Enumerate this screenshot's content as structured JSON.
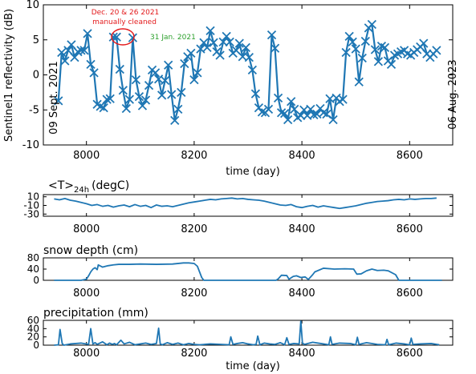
{
  "figure": {
    "line_color": "#1f77b4",
    "annotation_red": "#e31a1c",
    "annotation_green": "#2ca02c"
  },
  "chart_data": [
    {
      "type": "line",
      "marker": "x",
      "title": "",
      "xlabel": "time (day)",
      "ylabel": "Sentinel1 reflectivity (dB)",
      "xlim": [
        7920,
        8680
      ],
      "ylim": [
        -10,
        10
      ],
      "x_ticks": [
        8000,
        8200,
        8400,
        8600
      ],
      "y_ticks": [
        -10,
        -5,
        0,
        5,
        10
      ],
      "grid": false,
      "series": [
        {
          "x": [
            7948,
            7954,
            7960,
            7966,
            7972,
            7978,
            7984,
            7990,
            7996,
            8002,
            8008,
            8014,
            8020,
            8026,
            8032,
            8038,
            8044,
            8050,
            8056,
            8062,
            8068,
            8074,
            8080,
            8086,
            8092,
            8098,
            8104,
            8110,
            8116,
            8122,
            8128,
            8134,
            8140,
            8146,
            8152,
            8158,
            8164,
            8170,
            8176,
            8182,
            8188,
            8194,
            8200,
            8206,
            8212,
            8218,
            8224,
            8230,
            8236,
            8242,
            8248,
            8254,
            8260,
            8266,
            8272,
            8278,
            8284,
            8290,
            8296,
            8302,
            8308,
            8314,
            8320,
            8326,
            8332,
            8338,
            8344,
            8350,
            8356,
            8362,
            8368,
            8374,
            8380,
            8386,
            8392,
            8398,
            8404,
            8410,
            8416,
            8422,
            8428,
            8434,
            8440,
            8446,
            8452,
            8458,
            8464,
            8470,
            8476,
            8482,
            8488,
            8494,
            8500,
            8506,
            8512,
            8518,
            8524,
            8530,
            8536,
            8542,
            8548,
            8554,
            8560,
            8566,
            8572,
            8578,
            8584,
            8590,
            8596,
            8602,
            8608,
            8614,
            8620,
            8626,
            8632,
            8638,
            8644,
            8650
          ],
          "y": [
            -3.7,
            3.2,
            2.0,
            3.5,
            4.3,
            2.5,
            3.3,
            3.5,
            3.5,
            5.9,
            1.5,
            0.3,
            -4.2,
            -4.5,
            -4.7,
            -3.5,
            -3.4,
            5.4,
            5.4,
            0.8,
            -2.2,
            -4.8,
            -3.5,
            5.3,
            -0.7,
            -3.1,
            -4.4,
            -3.6,
            -1.5,
            0.7,
            0.3,
            -0.6,
            -2.9,
            -0.8,
            1.4,
            -2.8,
            -6.5,
            -4.9,
            -2.5,
            1.6,
            2.6,
            3.1,
            -0.7,
            0.3,
            3.7,
            4.6,
            3.9,
            6.3,
            4.6,
            3.3,
            2.8,
            4.7,
            5.5,
            4.7,
            3.1,
            3.5,
            4.5,
            2.6,
            3.9,
            2.5,
            0.7,
            -2.7,
            -4.7,
            -5.3,
            -5.4,
            -4.9,
            5.7,
            3.8,
            -3.3,
            -5.4,
            -5.5,
            -6.4,
            -3.8,
            -4.9,
            -6.1,
            -5.8,
            -5.0,
            -5.8,
            -4.9,
            -5.7,
            -5.6,
            -4.8,
            -5.4,
            -5.6,
            -3.4,
            -6.4,
            -3.3,
            -3.8,
            -3.5,
            3.2,
            5.5,
            4.7,
            3.7,
            -1.0,
            2.4,
            4.8,
            6.7,
            7.2,
            3.6,
            1.9,
            4.1,
            3.9,
            2.0,
            1.5,
            2.8,
            3.0,
            3.3,
            3.5,
            3.0,
            2.8,
            3.2,
            3.6,
            4.0,
            4.5,
            3.0,
            2.5,
            3.0,
            3.5
          ]
        }
      ],
      "annotations": [
        {
          "text": "Dec. 20 & 26 2021",
          "color": "red"
        },
        {
          "text": "manually cleaned",
          "color": "red"
        },
        {
          "text": "31 Jan. 2021",
          "color": "green"
        }
      ],
      "side_labels": {
        "left": "09 Sept. 2021",
        "right": "06 Aug. 2023"
      }
    },
    {
      "type": "line",
      "title": "<T>24h (degC)",
      "title_main": "<T>",
      "title_sub": "24h",
      "title_unit": "(degC)",
      "xlabel": "",
      "ylabel": "",
      "xlim": [
        7920,
        8680
      ],
      "ylim": [
        -35,
        15
      ],
      "x_ticks": [
        8000,
        8200,
        8400,
        8600
      ],
      "y_ticks": [
        10,
        -10,
        -30
      ],
      "y_tick_labels": [
        "10",
        "-10",
        "-30"
      ],
      "grid": false,
      "series": [
        {
          "x": [
            7940,
            7950,
            7960,
            7970,
            7980,
            7990,
            8000,
            8010,
            8020,
            8030,
            8040,
            8050,
            8060,
            8070,
            8080,
            8090,
            8100,
            8110,
            8120,
            8130,
            8140,
            8150,
            8160,
            8170,
            8180,
            8190,
            8200,
            8210,
            8220,
            8230,
            8240,
            8250,
            8260,
            8270,
            8280,
            8290,
            8300,
            8310,
            8320,
            8330,
            8340,
            8350,
            8360,
            8370,
            8380,
            8390,
            8400,
            8410,
            8420,
            8430,
            8440,
            8450,
            8460,
            8470,
            8480,
            8490,
            8500,
            8510,
            8520,
            8530,
            8540,
            8550,
            8560,
            8570,
            8580,
            8590,
            8600,
            8610,
            8620,
            8630,
            8640,
            8650
          ],
          "y": [
            5,
            3,
            6,
            2,
            0,
            -3,
            -6,
            -10,
            -8,
            -12,
            -10,
            -14,
            -11,
            -9,
            -13,
            -8,
            -12,
            -10,
            -15,
            -9,
            -12,
            -11,
            -13,
            -10,
            -7,
            -4,
            -2,
            0,
            2,
            4,
            3,
            5,
            6,
            7,
            5,
            6,
            4,
            3,
            2,
            0,
            -3,
            -6,
            -9,
            -10,
            -8,
            -13,
            -15,
            -12,
            -10,
            -14,
            -11,
            -13,
            -15,
            -17,
            -15,
            -13,
            -11,
            -8,
            -5,
            -3,
            -1,
            0,
            1,
            3,
            4,
            3,
            5,
            4,
            5,
            6,
            6,
            7
          ]
        }
      ]
    },
    {
      "type": "line",
      "title": "snow depth (cm)",
      "xlabel": "",
      "ylabel": "",
      "xlim": [
        7920,
        8680
      ],
      "ylim": [
        0,
        80
      ],
      "x_ticks": [
        8000,
        8200,
        8400,
        8600
      ],
      "y_ticks": [
        0,
        40,
        80
      ],
      "grid": false,
      "series": [
        {
          "x": [
            7940,
            7990,
            8000,
            8004,
            8008,
            8012,
            8016,
            8020,
            8022,
            8030,
            8040,
            8050,
            8060,
            8080,
            8100,
            8130,
            8160,
            8180,
            8190,
            8200,
            8206,
            8210,
            8214,
            8218,
            8226,
            8300,
            8340,
            8352,
            8356,
            8362,
            8372,
            8376,
            8384,
            8390,
            8398,
            8406,
            8412,
            8420,
            8424,
            8440,
            8460,
            8480,
            8496,
            8502,
            8510,
            8520,
            8530,
            8540,
            8552,
            8560,
            8574,
            8580,
            8660
          ],
          "y": [
            0,
            0,
            4,
            16,
            30,
            40,
            45,
            38,
            55,
            47,
            52,
            55,
            57,
            57,
            58,
            57,
            58,
            62,
            62,
            60,
            50,
            30,
            10,
            0,
            0,
            0,
            0,
            0,
            5,
            18,
            17,
            4,
            14,
            16,
            10,
            12,
            3,
            20,
            30,
            43,
            40,
            41,
            40,
            22,
            23,
            34,
            40,
            35,
            36,
            34,
            20,
            0,
            0
          ]
        }
      ]
    },
    {
      "type": "line",
      "title": "precipitation (mm)",
      "xlabel": "time (day)",
      "ylabel": "",
      "xlim": [
        7920,
        8680
      ],
      "ylim": [
        0,
        60
      ],
      "x_ticks": [
        8000,
        8200,
        8400,
        8600
      ],
      "y_ticks": [
        0,
        20,
        40,
        60
      ],
      "grid": false,
      "series": [
        {
          "x": [
            7940,
            7948,
            7951,
            7955,
            7958,
            7970,
            7990,
            8004,
            8008,
            8012,
            8016,
            8020,
            8030,
            8038,
            8043,
            8048,
            8052,
            8056,
            8064,
            8070,
            8080,
            8090,
            8100,
            8110,
            8120,
            8130,
            8134,
            8137,
            8141,
            8150,
            8160,
            8170,
            8180,
            8190,
            8200,
            8210,
            8230,
            8250,
            8265,
            8268,
            8272,
            8280,
            8290,
            8300,
            8310,
            8315,
            8318,
            8322,
            8330,
            8340,
            8350,
            8360,
            8368,
            8372,
            8376,
            8385,
            8395,
            8398,
            8401,
            8405,
            8420,
            8440,
            8450,
            8453,
            8456,
            8470,
            8490,
            8500,
            8503,
            8506,
            8520,
            8540,
            8555,
            8558,
            8561,
            8575,
            8590,
            8600,
            8603,
            8606,
            8620,
            8640,
            8655
          ],
          "y": [
            0,
            1,
            38,
            4,
            0,
            3,
            5,
            2,
            40,
            3,
            6,
            2,
            8,
            1,
            5,
            2,
            4,
            1,
            12,
            3,
            7,
            1,
            3,
            5,
            2,
            4,
            41,
            3,
            1,
            6,
            2,
            5,
            1,
            4,
            2,
            1,
            3,
            2,
            1,
            20,
            2,
            4,
            6,
            3,
            1,
            2,
            22,
            1,
            5,
            3,
            2,
            6,
            1,
            18,
            2,
            4,
            3,
            58,
            5,
            2,
            7,
            3,
            1,
            20,
            2,
            5,
            4,
            1,
            19,
            2,
            6,
            2,
            1,
            14,
            1,
            5,
            3,
            1,
            17,
            2,
            3,
            4,
            1
          ]
        }
      ]
    }
  ]
}
